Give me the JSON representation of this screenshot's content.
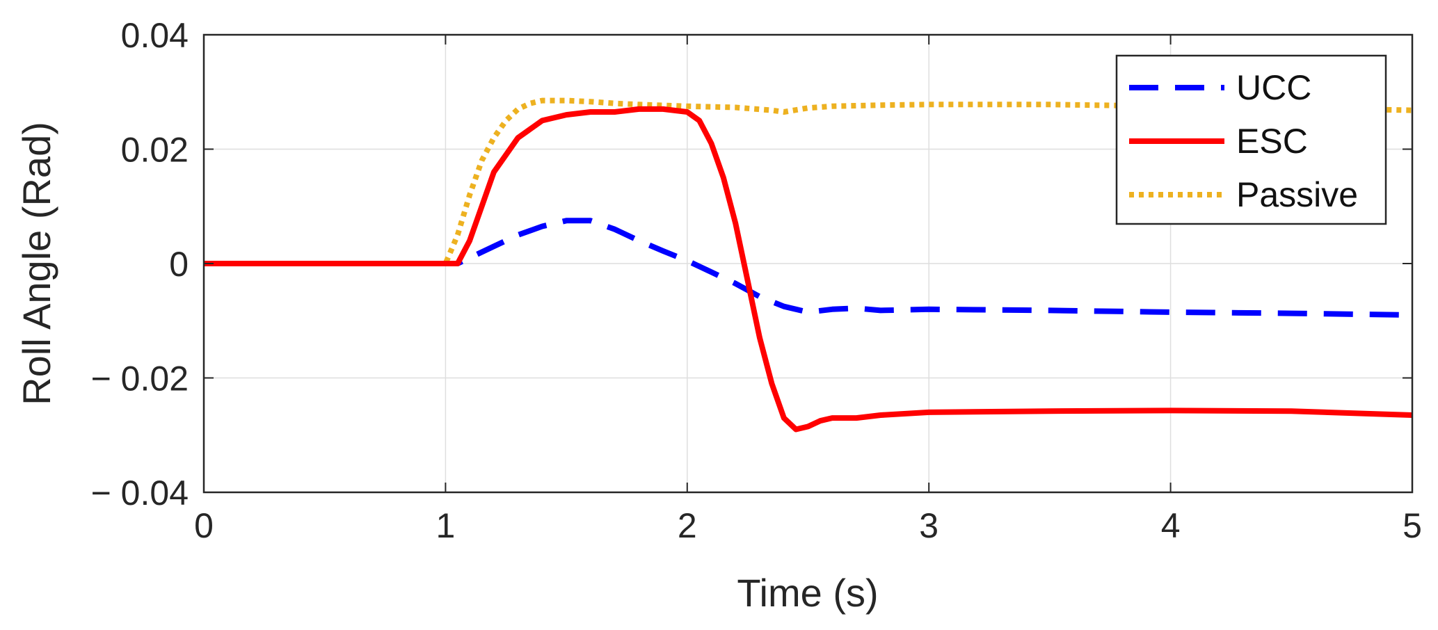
{
  "chart_data": {
    "type": "line",
    "title": "",
    "xlabel": "Time (s)",
    "ylabel": "Roll Angle (Rad)",
    "xlim": [
      0,
      5
    ],
    "ylim": [
      -0.04,
      0.04
    ],
    "xticks": [
      0,
      1,
      2,
      3,
      4,
      5
    ],
    "xtick_labels": [
      "0",
      "1",
      "2",
      "3",
      "4",
      "5"
    ],
    "yticks": [
      0.04,
      0.02,
      0,
      -0.02,
      -0.04
    ],
    "ytick_labels": [
      "0.04",
      "0.02",
      "0",
      "− 0.02",
      "− 0.04"
    ],
    "grid": true,
    "legend_position": "top-right",
    "series": [
      {
        "name": "UCC",
        "color": "#0000ff",
        "style": "dashed",
        "x": [
          0,
          1.0,
          1.05,
          1.1,
          1.2,
          1.3,
          1.4,
          1.5,
          1.6,
          1.7,
          1.8,
          1.9,
          2.0,
          2.1,
          2.2,
          2.3,
          2.4,
          2.5,
          2.6,
          2.7,
          2.8,
          3.0,
          3.5,
          4.0,
          4.5,
          5.0
        ],
        "y": [
          0,
          0,
          0,
          0.001,
          0.003,
          0.005,
          0.0065,
          0.0075,
          0.0075,
          0.006,
          0.004,
          0.0022,
          0.0005,
          -0.0015,
          -0.0035,
          -0.0058,
          -0.0075,
          -0.0085,
          -0.008,
          -0.0078,
          -0.0082,
          -0.008,
          -0.0082,
          -0.0085,
          -0.0087,
          -0.009
        ]
      },
      {
        "name": "ESC",
        "color": "#ff0000",
        "style": "solid",
        "x": [
          0,
          1.0,
          1.05,
          1.1,
          1.15,
          1.2,
          1.3,
          1.4,
          1.5,
          1.6,
          1.7,
          1.8,
          1.9,
          2.0,
          2.05,
          2.1,
          2.15,
          2.2,
          2.25,
          2.3,
          2.35,
          2.4,
          2.45,
          2.5,
          2.55,
          2.6,
          2.7,
          2.8,
          3.0,
          3.5,
          4.0,
          4.5,
          5.0
        ],
        "y": [
          0,
          0,
          0,
          0.004,
          0.01,
          0.016,
          0.022,
          0.025,
          0.026,
          0.0265,
          0.0265,
          0.027,
          0.027,
          0.0265,
          0.025,
          0.021,
          0.015,
          0.007,
          -0.003,
          -0.013,
          -0.021,
          -0.027,
          -0.029,
          -0.0285,
          -0.0275,
          -0.027,
          -0.027,
          -0.0265,
          -0.026,
          -0.0258,
          -0.0257,
          -0.0258,
          -0.0265
        ]
      },
      {
        "name": "Passive",
        "color": "#edb120",
        "style": "dotted",
        "x": [
          0,
          1.0,
          1.05,
          1.1,
          1.15,
          1.2,
          1.25,
          1.3,
          1.35,
          1.4,
          1.5,
          1.6,
          1.7,
          1.8,
          2.0,
          2.2,
          2.35,
          2.4,
          2.5,
          2.6,
          2.8,
          3.0,
          3.5,
          4.0,
          4.5,
          5.0
        ],
        "y": [
          0,
          0,
          0.005,
          0.012,
          0.018,
          0.022,
          0.025,
          0.027,
          0.028,
          0.0285,
          0.0285,
          0.0283,
          0.028,
          0.0278,
          0.0275,
          0.0273,
          0.0268,
          0.0265,
          0.0272,
          0.0275,
          0.0277,
          0.0278,
          0.0278,
          0.0275,
          0.0272,
          0.0268
        ]
      }
    ]
  }
}
